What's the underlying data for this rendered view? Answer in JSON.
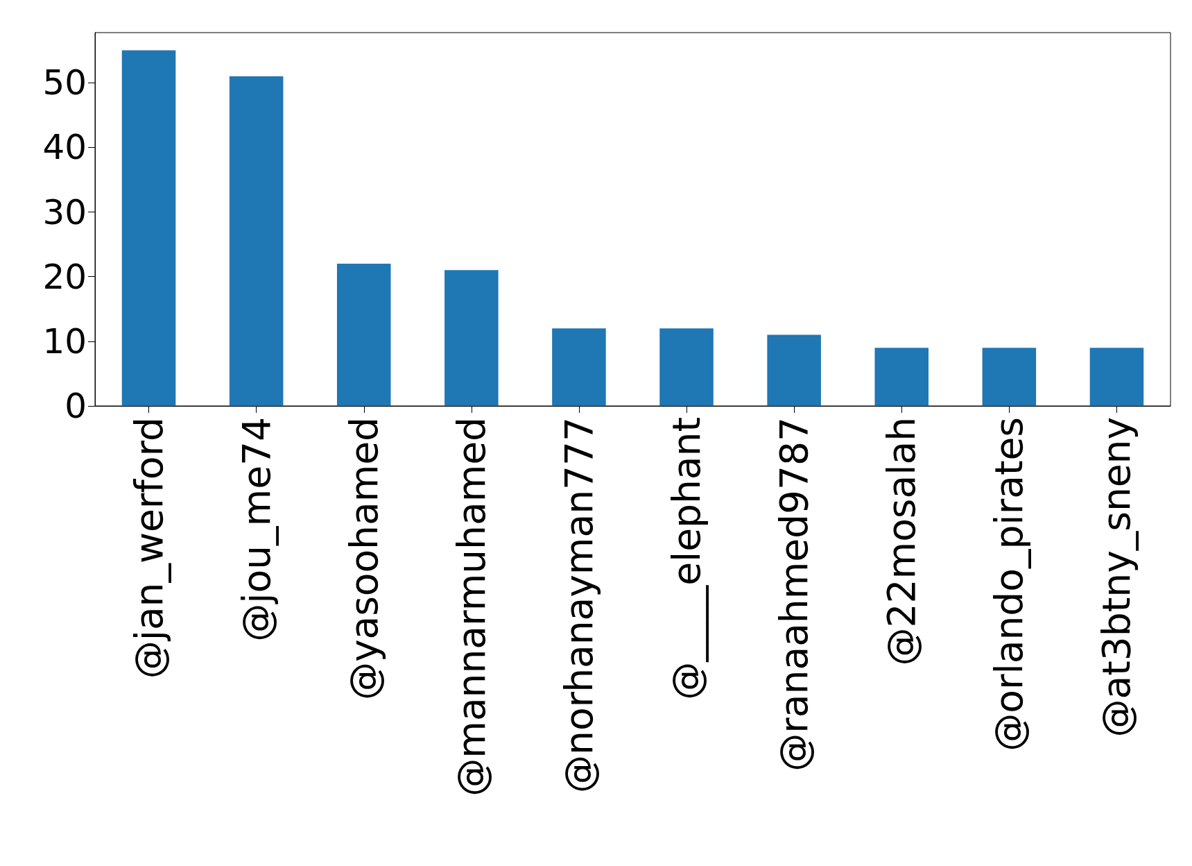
{
  "chart_data": {
    "type": "bar",
    "categories": [
      "@jan_werford",
      "@jou_me74",
      "@yasoohamed",
      "@mannarmuhamed",
      "@norhanayman777",
      "@____elephant",
      "@ranaahmed9787",
      "@22mosalah",
      "@orlando_pirates",
      "@at3btny_sneny"
    ],
    "values": [
      55,
      51,
      22,
      21,
      12,
      12,
      11,
      9,
      9,
      9
    ],
    "color": "#1f77b4",
    "ylim": [
      0,
      57.75
    ],
    "yticks": [
      0,
      10,
      20,
      30,
      40,
      50
    ],
    "grid": false
  }
}
